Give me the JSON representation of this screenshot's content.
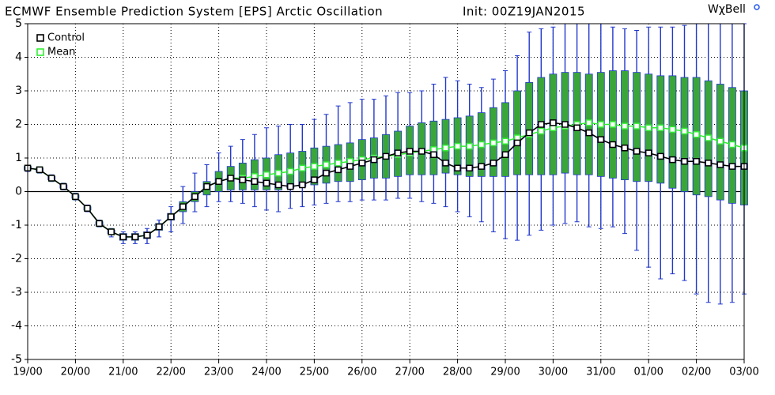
{
  "chart_data": {
    "type": "box",
    "title": "ECMWF Ensemble Prediction System [EPS] Arctic Oscillation",
    "subtitle": "Init: 00Z19JAN2015",
    "brand": "WχBell",
    "categories": [
      "19/00",
      null,
      null,
      null,
      "20/00",
      null,
      null,
      null,
      "21/00",
      null,
      null,
      null,
      "22/00",
      null,
      null,
      null,
      "23/00",
      null,
      null,
      null,
      "24/00",
      null,
      null,
      null,
      "25/00",
      null,
      null,
      null,
      "26/00",
      null,
      null,
      null,
      "27/00",
      null,
      null,
      null,
      "28/00",
      null,
      null,
      null,
      "29/00",
      null,
      null,
      null,
      "30/00",
      null,
      null,
      null,
      "31/00",
      null,
      null,
      null,
      "01/00",
      null,
      null,
      null,
      "02/00",
      null,
      null,
      null,
      "03/00"
    ],
    "ylim": [
      -5,
      5
    ],
    "yticks": [
      -5,
      -4,
      -3,
      -2,
      -1,
      0,
      1,
      2,
      3,
      4,
      5
    ],
    "grid": true,
    "legend": "top-left",
    "spread": {
      "box_color": "#3aa63a",
      "whisker_color": "#2238cc",
      "box_low": [
        0.65,
        0.6,
        0.35,
        0.1,
        -0.2,
        -0.55,
        -1.0,
        -1.25,
        -1.45,
        -1.45,
        -1.4,
        -1.15,
        -0.85,
        -0.6,
        -0.3,
        -0.1,
        0.0,
        0.05,
        0.05,
        0.05,
        0.05,
        0.05,
        0.1,
        0.15,
        0.2,
        0.25,
        0.3,
        0.3,
        0.35,
        0.4,
        0.4,
        0.45,
        0.5,
        0.5,
        0.5,
        0.55,
        0.5,
        0.45,
        0.45,
        0.45,
        0.45,
        0.5,
        0.5,
        0.5,
        0.5,
        0.55,
        0.5,
        0.5,
        0.45,
        0.4,
        0.35,
        0.3,
        0.3,
        0.25,
        0.1,
        0.0,
        -0.1,
        -0.15,
        -0.25,
        -0.35,
        -0.4
      ],
      "box_high": [
        0.75,
        0.7,
        0.45,
        0.2,
        -0.1,
        -0.45,
        -0.9,
        -1.15,
        -1.25,
        -1.25,
        -1.2,
        -0.95,
        -0.65,
        -0.3,
        0.0,
        0.3,
        0.6,
        0.75,
        0.85,
        0.95,
        1.0,
        1.1,
        1.15,
        1.2,
        1.3,
        1.35,
        1.4,
        1.45,
        1.55,
        1.6,
        1.7,
        1.8,
        1.95,
        2.05,
        2.1,
        2.15,
        2.2,
        2.25,
        2.35,
        2.5,
        2.65,
        3.0,
        3.25,
        3.4,
        3.5,
        3.55,
        3.55,
        3.5,
        3.55,
        3.6,
        3.6,
        3.55,
        3.5,
        3.45,
        3.45,
        3.4,
        3.4,
        3.3,
        3.2,
        3.1,
        3.0
      ],
      "whisker_low": [
        0.6,
        0.55,
        0.3,
        0.05,
        -0.25,
        -0.6,
        -1.05,
        -1.35,
        -1.55,
        -1.55,
        -1.55,
        -1.35,
        -1.2,
        -0.95,
        -0.6,
        -0.45,
        -0.3,
        -0.3,
        -0.35,
        -0.45,
        -0.55,
        -0.6,
        -0.5,
        -0.45,
        -0.4,
        -0.35,
        -0.3,
        -0.3,
        -0.25,
        -0.25,
        -0.25,
        -0.2,
        -0.2,
        -0.3,
        -0.35,
        -0.45,
        -0.6,
        -0.75,
        -0.9,
        -1.2,
        -1.4,
        -1.45,
        -1.3,
        -1.15,
        -1.0,
        -0.95,
        -0.9,
        -1.05,
        -1.1,
        -1.05,
        -1.25,
        -1.75,
        -2.25,
        -2.6,
        -2.45,
        -2.65,
        -3.05,
        -3.3,
        -3.35,
        -3.3,
        -3.05
      ],
      "whisker_high": [
        0.75,
        0.7,
        0.5,
        0.25,
        -0.05,
        -0.4,
        -0.85,
        -1.1,
        -1.2,
        -1.2,
        -1.1,
        -0.85,
        -0.45,
        0.15,
        0.55,
        0.8,
        1.15,
        1.35,
        1.55,
        1.7,
        1.9,
        1.95,
        2.0,
        2.0,
        2.15,
        2.3,
        2.55,
        2.65,
        2.75,
        2.75,
        2.85,
        2.95,
        2.95,
        3.0,
        3.2,
        3.4,
        3.3,
        3.2,
        3.1,
        3.35,
        3.6,
        4.05,
        4.75,
        4.85,
        4.9,
        5,
        5,
        5,
        5,
        4.9,
        4.85,
        4.8,
        4.9,
        4.9,
        4.9,
        4.95,
        5,
        5,
        5,
        5,
        5
      ]
    },
    "series": [
      {
        "name": "Control",
        "color": "#000000",
        "values": [
          0.7,
          0.65,
          0.4,
          0.15,
          -0.15,
          -0.5,
          -0.95,
          -1.2,
          -1.35,
          -1.35,
          -1.3,
          -1.05,
          -0.75,
          -0.45,
          -0.15,
          0.15,
          0.3,
          0.4,
          0.35,
          0.3,
          0.25,
          0.2,
          0.15,
          0.2,
          0.35,
          0.55,
          0.65,
          0.75,
          0.85,
          0.95,
          1.05,
          1.15,
          1.2,
          1.2,
          1.1,
          0.85,
          0.7,
          0.7,
          0.75,
          0.85,
          1.1,
          1.45,
          1.75,
          2.0,
          2.05,
          2.0,
          1.9,
          1.75,
          1.55,
          1.4,
          1.3,
          1.2,
          1.15,
          1.05,
          0.95,
          0.9,
          0.9,
          0.85,
          0.8,
          0.75,
          0.75
        ]
      },
      {
        "name": "Mean",
        "color": "#33ee33",
        "values": [
          0.7,
          0.65,
          0.4,
          0.15,
          -0.15,
          -0.5,
          -0.95,
          -1.2,
          -1.35,
          -1.35,
          -1.3,
          -1.05,
          -0.75,
          -0.45,
          -0.15,
          0.15,
          0.3,
          0.4,
          0.4,
          0.45,
          0.5,
          0.55,
          0.6,
          0.7,
          0.75,
          0.8,
          0.85,
          0.9,
          0.95,
          1.0,
          1.05,
          1.1,
          1.15,
          1.2,
          1.25,
          1.3,
          1.35,
          1.35,
          1.4,
          1.45,
          1.5,
          1.6,
          1.7,
          1.8,
          1.9,
          1.95,
          2.0,
          2.05,
          2.0,
          2.0,
          1.95,
          1.95,
          1.9,
          1.9,
          1.85,
          1.8,
          1.7,
          1.6,
          1.5,
          1.4,
          1.3
        ]
      }
    ]
  }
}
